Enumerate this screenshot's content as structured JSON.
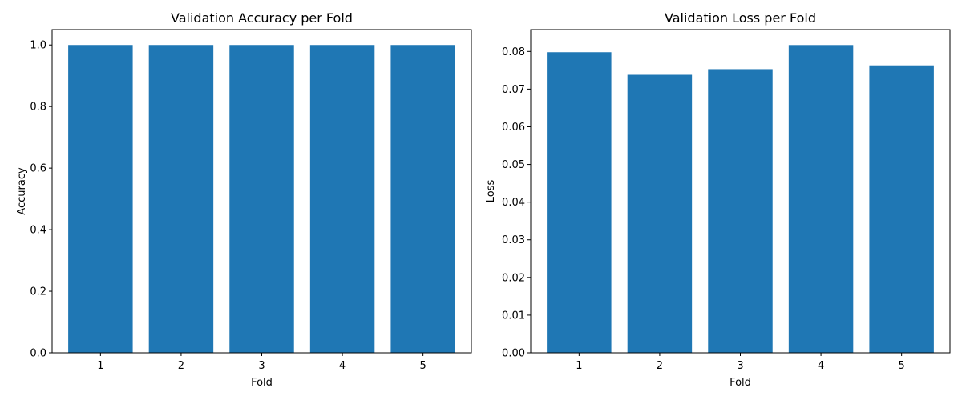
{
  "chart_data": [
    {
      "type": "bar",
      "title": "Validation Accuracy per Fold",
      "xlabel": "Fold",
      "ylabel": "Accuracy",
      "categories": [
        "1",
        "2",
        "3",
        "4",
        "5"
      ],
      "values": [
        1.0,
        1.0,
        1.0,
        1.0,
        1.0
      ],
      "ylim": [
        0,
        1.05
      ],
      "yticks": [
        0.0,
        0.2,
        0.4,
        0.6,
        0.8,
        1.0
      ],
      "ytick_labels": [
        "0.0",
        "0.2",
        "0.4",
        "0.6",
        "0.8",
        "1.0"
      ],
      "color": "#1f77b4",
      "grid": false,
      "legend": "none"
    },
    {
      "type": "bar",
      "title": "Validation Loss per Fold",
      "xlabel": "Fold",
      "ylabel": "Loss",
      "categories": [
        "1",
        "2",
        "3",
        "4",
        "5"
      ],
      "values": [
        0.0798,
        0.0738,
        0.0753,
        0.0817,
        0.0763
      ],
      "ylim": [
        0,
        0.0858
      ],
      "yticks": [
        0.0,
        0.01,
        0.02,
        0.03,
        0.04,
        0.05,
        0.06,
        0.07,
        0.08
      ],
      "ytick_labels": [
        "0.00",
        "0.01",
        "0.02",
        "0.03",
        "0.04",
        "0.05",
        "0.06",
        "0.07",
        "0.08"
      ],
      "color": "#1f77b4",
      "grid": false,
      "legend": "none"
    }
  ]
}
